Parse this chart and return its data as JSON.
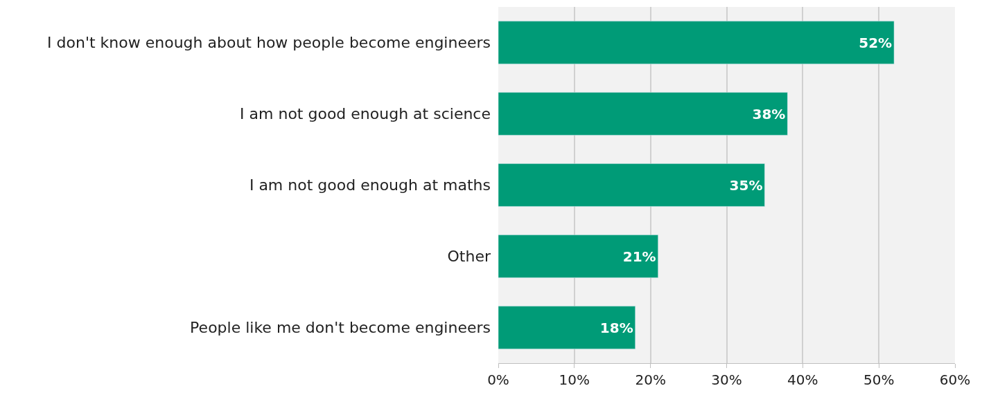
{
  "chart_data": {
    "type": "bar",
    "orientation": "horizontal",
    "categories": [
      "I don't know enough about how people become engineers",
      "I am not good enough at science",
      "I am not good enough at maths",
      "Other",
      "People like me don't become engineers"
    ],
    "values": [
      52,
      38,
      35,
      21,
      18
    ],
    "value_labels": [
      "52%",
      "38%",
      "35%",
      "21%",
      "18%"
    ],
    "color": "#009b77",
    "xlim": [
      0,
      60
    ],
    "xticks": [
      {
        "value": 0,
        "label": "0%"
      },
      {
        "value": 10,
        "label": "10%"
      },
      {
        "value": 20,
        "label": "20%"
      },
      {
        "value": 30,
        "label": "30%"
      },
      {
        "value": 40,
        "label": "40%"
      },
      {
        "value": 50,
        "label": "50%"
      },
      {
        "value": 60,
        "label": "60%"
      }
    ],
    "grid": "x"
  }
}
